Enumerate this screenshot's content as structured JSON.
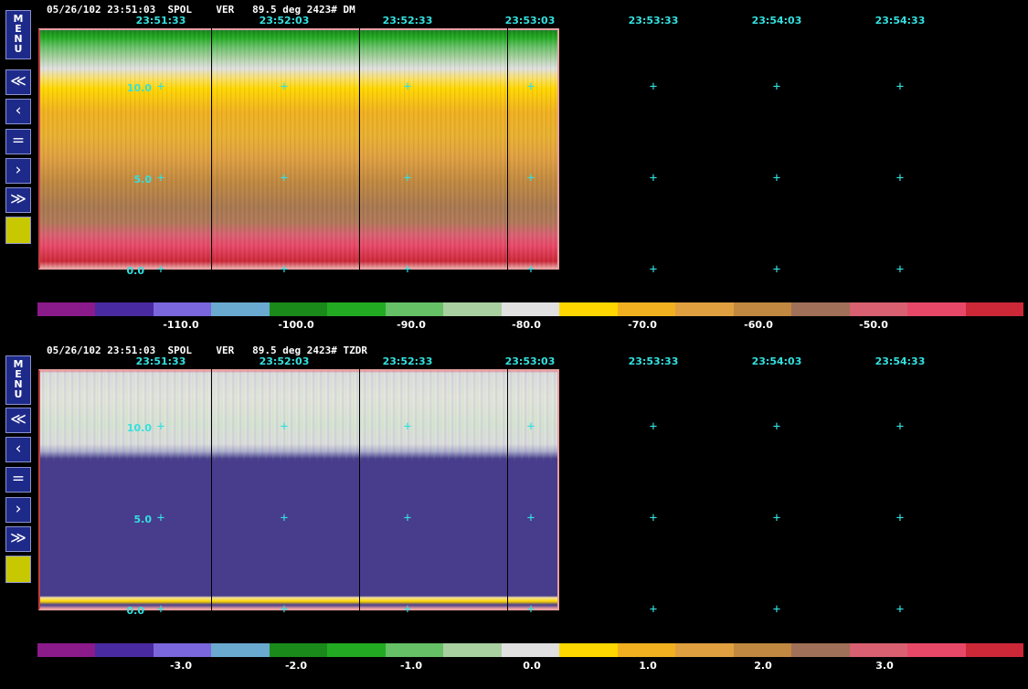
{
  "panels": [
    {
      "header": "05/26/102 23:51:03  SPOL    VER   89.5 deg 2423# DM",
      "field": "DM",
      "time_labels": [
        "23:51:33",
        "23:52:03",
        "23:52:33",
        "23:53:03",
        "23:53:33",
        "23:54:03",
        "23:54:33"
      ],
      "height_labels": [
        "10.0",
        "5.0",
        "0.0"
      ],
      "scale_labels": [
        "-110.0",
        "-100.0",
        "-90.0",
        "-80.0",
        "-70.0",
        "-60.0",
        "-50.0"
      ],
      "menu_label": "MENU",
      "nav": {
        "first": "≪",
        "prev": "‹",
        "stop": "=",
        "next": "›",
        "last": "≫"
      }
    },
    {
      "header": "05/26/102 23:51:03  SPOL    VER   89.5 deg 2423# TZDR",
      "field": "TZDR",
      "time_labels": [
        "23:51:33",
        "23:52:03",
        "23:52:33",
        "23:53:03",
        "23:53:33",
        "23:54:03",
        "23:54:33"
      ],
      "height_labels": [
        "10.0",
        "5.0",
        "0.0"
      ],
      "scale_labels": [
        "-3.0",
        "-2.0",
        "-1.0",
        "0.0",
        "1.0",
        "2.0",
        "3.0"
      ],
      "menu_label": "MENU",
      "nav": {
        "first": "≪",
        "prev": "‹",
        "stop": "=",
        "next": "›",
        "last": "≫"
      }
    }
  ],
  "colors": {
    "scale": [
      "#8b1a8b",
      "#4a2aa0",
      "#7a66dd",
      "#6aaad0",
      "#1a8a1a",
      "#22aa22",
      "#66c066",
      "#a8d0a0",
      "#e0e0e0",
      "#ffd700",
      "#f0b020",
      "#e0a040",
      "#c08840",
      "#a07058",
      "#d86070",
      "#e84868",
      "#cc2838"
    ],
    "accent": "#33e0e0",
    "menu_bg": "#1e2a8a",
    "yellow_button": "#c8c800"
  }
}
